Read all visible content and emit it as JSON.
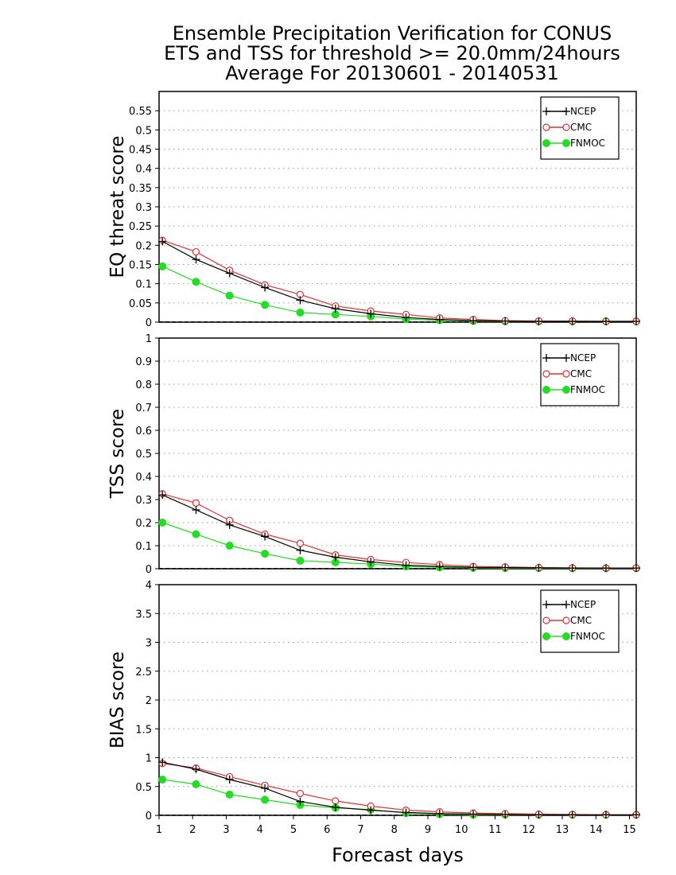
{
  "titles": [
    "Ensemble Precipitation Verification for CONUS",
    "ETS and TSS for threshold >= 20.0mm/24hours",
    "Average For 20130601 - 20140531"
  ],
  "xlabel": "Forecast days",
  "colors": {
    "NCEP": "#000000",
    "CMC": "#e03030",
    "FNMOC": "#22dd22"
  },
  "chart_data": [
    {
      "type": "line",
      "ylabel": "EQ threat score",
      "xlim": [
        1,
        15.2
      ],
      "ylim": [
        0,
        0.6
      ],
      "yticks": [
        "0",
        "0.05",
        "0.1",
        "0.15",
        "0.2",
        "0.25",
        "0.3",
        "0.35",
        "0.4",
        "0.45",
        "0.5",
        "0.55"
      ],
      "ytick_values": [
        0,
        0.05,
        0.1,
        0.15,
        0.2,
        0.25,
        0.3,
        0.35,
        0.4,
        0.45,
        0.5,
        0.55
      ],
      "grid": true,
      "legend_position": "top-right",
      "x": [
        1.1,
        2.1,
        3.1,
        4.15,
        5.2,
        6.25,
        7.3,
        8.35,
        9.35,
        10.35,
        11.3,
        12.3,
        13.3,
        14.3,
        15.2
      ],
      "series": [
        {
          "name": "NCEP",
          "marker": "plus",
          "values": [
            0.21,
            0.163,
            0.127,
            0.09,
            0.057,
            0.035,
            0.022,
            0.012,
            0.007,
            0.004,
            0.003,
            0.002,
            0.002,
            0.002,
            0.002
          ]
        },
        {
          "name": "CMC",
          "marker": "open-circle",
          "values": [
            0.213,
            0.183,
            0.135,
            0.097,
            0.072,
            0.042,
            0.029,
            0.02,
            0.011,
            0.007,
            0.004,
            0.003,
            0.003,
            0.002,
            0.002
          ]
        },
        {
          "name": "FNMOC",
          "marker": "filled-circle",
          "values": [
            0.145,
            0.105,
            0.069,
            0.045,
            0.025,
            0.02,
            0.015,
            0.008,
            0.005,
            0.003,
            0.002,
            0.002,
            0.002,
            0.002,
            0.002
          ]
        }
      ]
    },
    {
      "type": "line",
      "ylabel": "TSS score",
      "xlim": [
        1,
        15.2
      ],
      "ylim": [
        0,
        1
      ],
      "yticks": [
        "0",
        "0.1",
        "0.2",
        "0.3",
        "0.4",
        "0.5",
        "0.6",
        "0.7",
        "0.8",
        "0.9",
        "1"
      ],
      "ytick_values": [
        0,
        0.1,
        0.2,
        0.3,
        0.4,
        0.5,
        0.6,
        0.7,
        0.8,
        0.9,
        1
      ],
      "grid": true,
      "legend_position": "top-right",
      "x": [
        1.1,
        2.1,
        3.1,
        4.15,
        5.2,
        6.25,
        7.3,
        8.35,
        9.35,
        10.35,
        11.3,
        12.3,
        13.3,
        14.3,
        15.2
      ],
      "series": [
        {
          "name": "NCEP",
          "marker": "plus",
          "values": [
            0.32,
            0.255,
            0.19,
            0.14,
            0.08,
            0.05,
            0.03,
            0.015,
            0.01,
            0.006,
            0.005,
            0.004,
            0.003,
            0.003,
            0.003
          ]
        },
        {
          "name": "CMC",
          "marker": "open-circle",
          "values": [
            0.325,
            0.285,
            0.21,
            0.15,
            0.11,
            0.06,
            0.04,
            0.027,
            0.018,
            0.01,
            0.008,
            0.005,
            0.004,
            0.003,
            0.003
          ]
        },
        {
          "name": "FNMOC",
          "marker": "filled-circle",
          "values": [
            0.2,
            0.15,
            0.1,
            0.065,
            0.035,
            0.028,
            0.02,
            0.01,
            0.006,
            0.004,
            0.003,
            0.003,
            0.002,
            0.002,
            0.002
          ]
        }
      ]
    },
    {
      "type": "line",
      "ylabel": "BIAS score",
      "xlim": [
        1,
        15.2
      ],
      "ylim": [
        0,
        4
      ],
      "yticks": [
        "0",
        "0.5",
        "1",
        "1.5",
        "2",
        "2.5",
        "3",
        "3.5",
        "4"
      ],
      "ytick_values": [
        0,
        0.5,
        1,
        1.5,
        2,
        2.5,
        3,
        3.5,
        4
      ],
      "xticks": [
        "1",
        "2",
        "3",
        "4",
        "5",
        "6",
        "7",
        "8",
        "9",
        "10",
        "11",
        "12",
        "13",
        "14",
        "15"
      ],
      "grid": true,
      "legend_position": "top-right",
      "x": [
        1.1,
        2.1,
        3.1,
        4.15,
        5.2,
        6.25,
        7.3,
        8.35,
        9.35,
        10.35,
        11.3,
        12.3,
        13.3,
        14.3,
        15.2
      ],
      "series": [
        {
          "name": "NCEP",
          "marker": "plus",
          "values": [
            0.92,
            0.8,
            0.62,
            0.47,
            0.24,
            0.14,
            0.09,
            0.05,
            0.03,
            0.02,
            0.015,
            0.01,
            0.01,
            0.01,
            0.01
          ]
        },
        {
          "name": "CMC",
          "marker": "open-circle",
          "values": [
            0.9,
            0.82,
            0.67,
            0.52,
            0.38,
            0.25,
            0.16,
            0.09,
            0.06,
            0.04,
            0.03,
            0.02,
            0.015,
            0.01,
            0.01
          ]
        },
        {
          "name": "FNMOC",
          "marker": "filled-circle",
          "values": [
            0.62,
            0.54,
            0.36,
            0.27,
            0.18,
            0.13,
            0.1,
            0.04,
            0.02,
            0.01,
            0.01,
            0.01,
            0.01,
            0.01,
            0.01
          ]
        }
      ]
    }
  ]
}
